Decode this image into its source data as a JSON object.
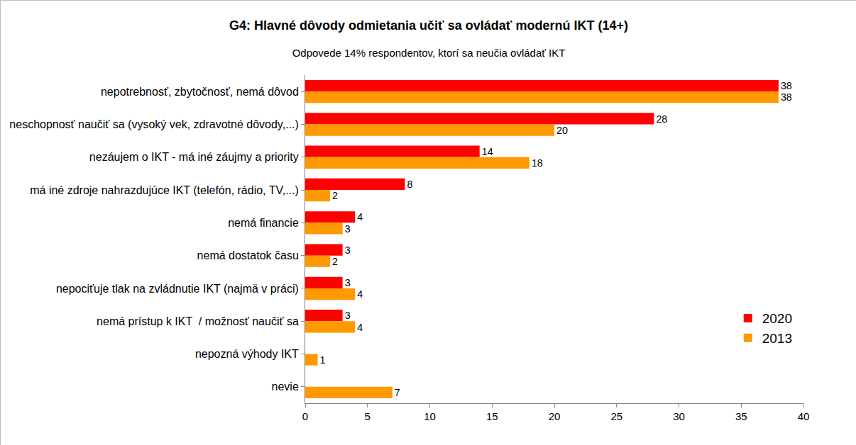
{
  "chart_data": {
    "type": "bar",
    "orientation": "horizontal",
    "title": "G4: Hlavné dôvody odmietania učiť sa ovládať modernú IKT (14+)",
    "subtitle": "Odpovede 14% respondentov, ktorí sa neučia ovládať IKT",
    "categories": [
      "nepotrebnosť, zbytočnosť, nemá dôvod",
      "neschopnosť naučiť sa (vysoký vek, zdravotné dôvody,...)",
      "nezáujem o IKT - má iné záujmy a priority",
      "má iné zdroje nahrazdujúce IKT (telefón, rádio, TV,...)",
      "nemá financie",
      "nemá dostatok času",
      "nepociťuje tlak na zvládnutie IKT (najmä v práci)",
      "nemá prístup k IKT  / možnosť naučiť sa",
      "nepozná výhody IKT",
      "nevie"
    ],
    "series": [
      {
        "name": "2020",
        "color": "#ff0000",
        "values": [
          38,
          28,
          14,
          8,
          4,
          3,
          3,
          3,
          null,
          null
        ]
      },
      {
        "name": "2013",
        "color": "#ff9900",
        "values": [
          38,
          20,
          18,
          2,
          3,
          2,
          4,
          4,
          1,
          7
        ]
      }
    ],
    "xlim": [
      0,
      40
    ],
    "xticks": [
      0,
      5,
      10,
      15,
      20,
      25,
      30,
      35,
      40
    ],
    "grid": false,
    "legend": "bottom-right",
    "data_labels": true
  }
}
